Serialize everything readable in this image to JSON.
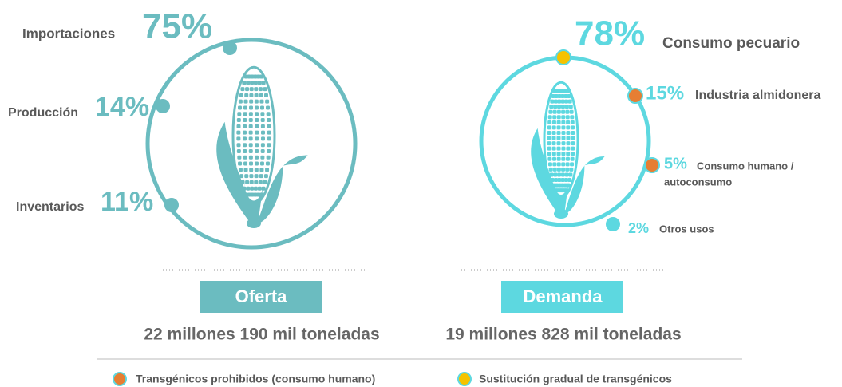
{
  "oferta": {
    "label": "Oferta",
    "total": "22 millones 190 mil toneladas",
    "items": [
      {
        "name": "Importaciones",
        "value": "75%"
      },
      {
        "name": "Producción",
        "value": "14%"
      },
      {
        "name": "Inventarios",
        "value": "11%"
      }
    ]
  },
  "demanda": {
    "label": "Demanda",
    "total": "19 millones 828 mil toneladas",
    "items": [
      {
        "value": "78%",
        "name": "Consumo pecuario"
      },
      {
        "value": "15%",
        "name": "Industria almidonera"
      },
      {
        "value": "5%",
        "name_lines": [
          "Consumo humano /",
          "autoconsumo"
        ]
      },
      {
        "value": "2%",
        "name": "Otros usos"
      }
    ]
  },
  "legend": [
    {
      "label": "Transgénicos prohibidos (consumo humano)"
    },
    {
      "label": "Sustitución gradual de transgénicos"
    }
  ]
}
